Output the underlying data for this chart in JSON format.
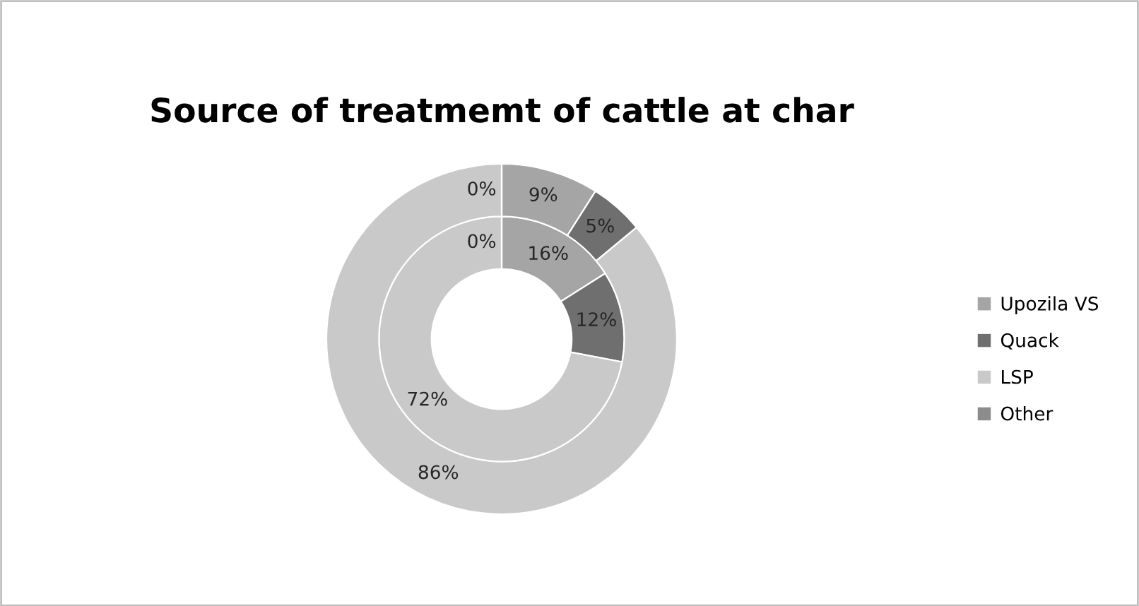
{
  "chart_data": {
    "type": "donut",
    "title": "Source of treatmemt of cattle at char",
    "categories": [
      "Upozila VS",
      "Quack",
      "LSP",
      "Other"
    ],
    "series": [
      {
        "values": [
          16,
          12,
          72,
          0
        ],
        "colors": [
          "#a5a5a5",
          "#6f6f6f",
          "#c9c9c9",
          "#8c8c8c"
        ],
        "value_labels": [
          "16%",
          "12%",
          "72%",
          "0%"
        ]
      },
      {
        "values": [
          9,
          5,
          86,
          0
        ],
        "colors": [
          "#a5a5a5",
          "#6f6f6f",
          "#c9c9c9",
          "#8c8c8c"
        ],
        "value_labels": [
          "9%",
          "5%",
          "86%",
          "0%"
        ]
      }
    ],
    "legend": "right"
  }
}
